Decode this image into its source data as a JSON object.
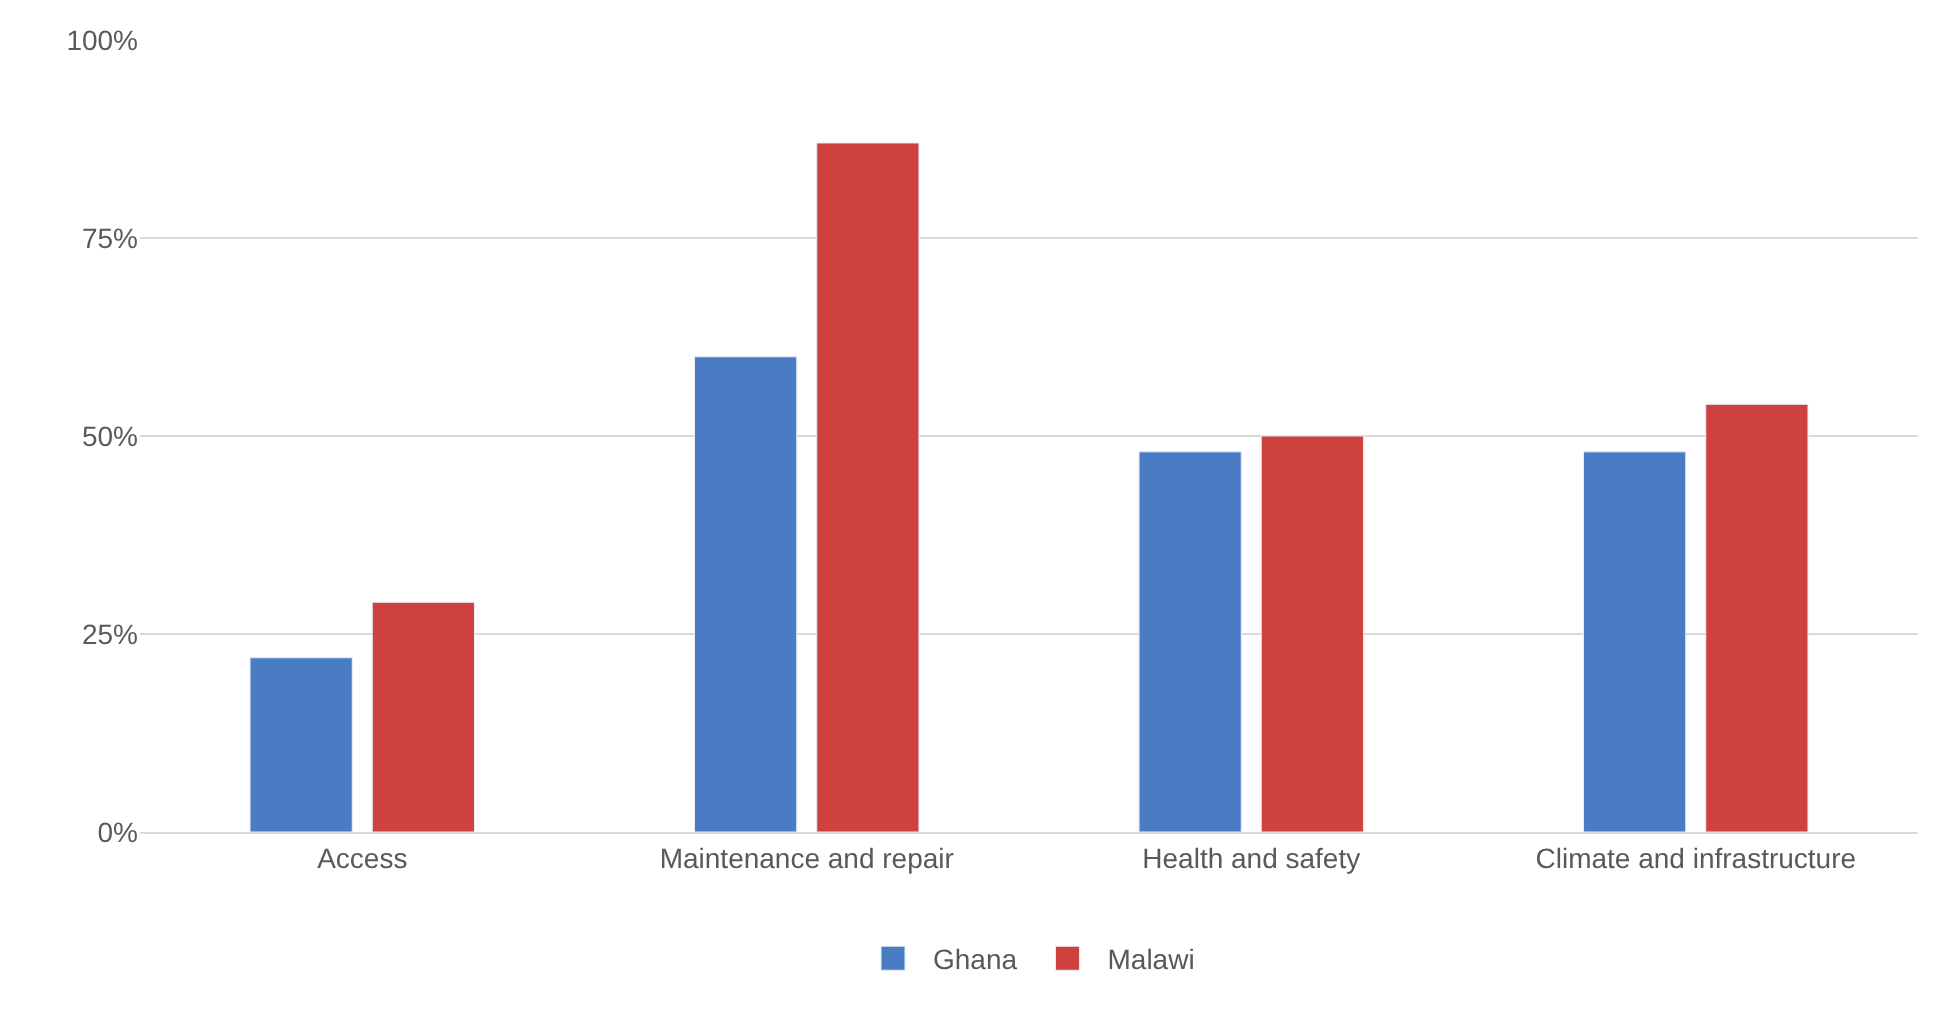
{
  "chart_data": {
    "type": "bar",
    "categories": [
      "Access",
      "Maintenance and repair",
      "Health and safety",
      "Climate and infrastructure"
    ],
    "series": [
      {
        "name": "Ghana",
        "color": "#4a7cc4",
        "values": [
          22,
          60,
          48,
          48
        ]
      },
      {
        "name": "Malawi",
        "color": "#cf413e",
        "values": [
          29,
          87,
          50,
          54
        ]
      }
    ],
    "ylim": [
      0,
      100
    ],
    "yticks": [
      {
        "value": 0,
        "label": "0%"
      },
      {
        "value": 25,
        "label": "25%"
      },
      {
        "value": 50,
        "label": "50%"
      },
      {
        "value": 75,
        "label": "75%"
      },
      {
        "value": 100,
        "label": "100%"
      }
    ],
    "grid": "y",
    "legend": "bottom"
  }
}
